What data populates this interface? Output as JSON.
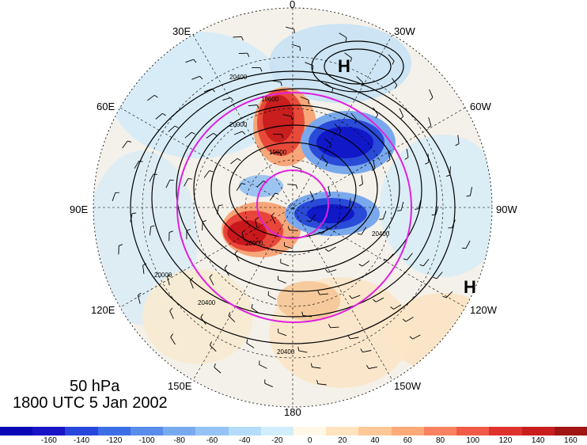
{
  "map": {
    "level": "50 hPa",
    "valid_time": "1800 UTC 5 Jan 2002",
    "longitude_labels": {
      "top": "0",
      "top_left": "30E",
      "top_right": "30W",
      "upper_left": "60E",
      "upper_right": "60W",
      "left": "90E",
      "right": "90W",
      "lower_left": "120E",
      "lower_right": "120W",
      "bottom_left": "150E",
      "bottom_right": "150W",
      "bottom": "180"
    },
    "high_markers": [
      "H",
      "H"
    ],
    "contour_labels": [
      "20400",
      "20000",
      "19600",
      "20000",
      "20400",
      "20000",
      "19600",
      "20400",
      "20400"
    ],
    "colors": {
      "ring": "#e020e0",
      "contour": "#000000",
      "strong_negative": "#0a1ed8",
      "strong_positive": "#c8101e"
    }
  },
  "colorbar": {
    "tick_labels": [
      "-160",
      "-140",
      "-120",
      "-100",
      "-80",
      "-60",
      "-40",
      "-20",
      "0",
      "20",
      "40",
      "60",
      "80",
      "100",
      "120",
      "140",
      "160"
    ],
    "colors": [
      "#1a14c8",
      "#2846dc",
      "#3c6ee6",
      "#5a8ceb",
      "#78aaf0",
      "#96c3f5",
      "#b4dcfa",
      "#d2eefc",
      "#fff8e6",
      "#ffe4c0",
      "#ffc896",
      "#ffaa78",
      "#fa8260",
      "#f05a46",
      "#e0322d",
      "#c81e1e",
      "#a01414"
    ]
  }
}
